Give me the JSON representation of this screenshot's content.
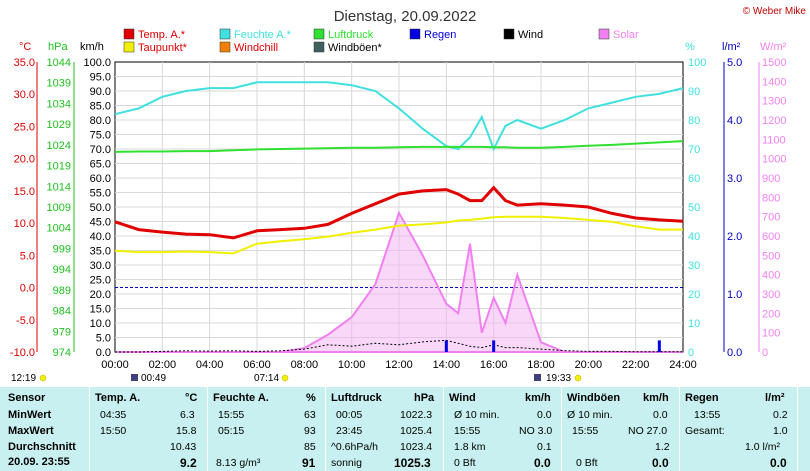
{
  "title": "Dienstag, 20.09.2022",
  "copyright": "© Weber Mike",
  "legend": [
    {
      "label": "Temp. A.*",
      "color": "#e00000"
    },
    {
      "label": "Feuchte A.*",
      "color": "#40e0e0"
    },
    {
      "label": "Luftdruck",
      "color": "#30e030"
    },
    {
      "label": "Regen",
      "color": "#0000e0"
    },
    {
      "label": "Wind",
      "color": "#000000"
    },
    {
      "label": "Solar",
      "color": "#f080f0"
    },
    {
      "label": "Taupunkt*",
      "color": "#f0f000"
    },
    {
      "label": "Windchill",
      "color": "#f08000"
    },
    {
      "label": "Windböen*",
      "color": "#406060"
    }
  ],
  "units": {
    "temp": "°C",
    "press": "hPa",
    "wind": "km/h",
    "hum": "%",
    "rain": "l/m²",
    "solar": "W/m²"
  },
  "axes": {
    "temp": [
      "35.0",
      "30.0",
      "25.0",
      "20.0",
      "15.0",
      "10.0",
      "5.0",
      "0.0",
      "-5.0",
      "-10.0"
    ],
    "press": [
      "1044",
      "1039",
      "1034",
      "1029",
      "1024",
      "1019",
      "1014",
      "1009",
      "1004",
      "999",
      "994",
      "989",
      "984",
      "979",
      "974"
    ],
    "wind": [
      "100.0",
      "95.0",
      "90.0",
      "85.0",
      "80.0",
      "75.0",
      "70.0",
      "65.0",
      "60.0",
      "55.0",
      "50.0",
      "45.0",
      "40.0",
      "35.0",
      "30.0",
      "25.0",
      "20.0",
      "15.0",
      "10.0",
      "5.0",
      "0.0"
    ],
    "hum": [
      "100",
      "90",
      "80",
      "70",
      "60",
      "50",
      "40",
      "30",
      "20",
      "10",
      "0"
    ],
    "rain": [
      "5.0",
      "4.0",
      "3.0",
      "2.0",
      "1.0",
      "0.0"
    ],
    "solar": [
      "1500",
      "1400",
      "1300",
      "1200",
      "1100",
      "1000",
      "900",
      "800",
      "700",
      "600",
      "500",
      "400",
      "300",
      "200",
      "100",
      "0"
    ],
    "time": [
      "00:00",
      "02:00",
      "04:00",
      "06:00",
      "08:00",
      "10:00",
      "12:00",
      "14:00",
      "16:00",
      "18:00",
      "20:00",
      "22:00",
      "24:00"
    ]
  },
  "sun": {
    "sunrise_moon": "12:19",
    "moonrise": "00:49",
    "sunrise": "07:14",
    "sunset": "19:33"
  },
  "chart_data": {
    "type": "line",
    "x_hours": [
      0,
      1,
      2,
      3,
      4,
      5,
      6,
      7,
      8,
      9,
      10,
      11,
      12,
      13,
      14,
      14.5,
      15,
      15.5,
      16,
      16.5,
      17,
      18,
      19,
      20,
      21,
      22,
      23,
      24
    ],
    "series": [
      {
        "name": "Temp. A.*",
        "unit": "°C",
        "values": [
          10.2,
          9.0,
          8.6,
          8.3,
          8.2,
          7.7,
          8.8,
          9.0,
          9.2,
          9.8,
          11.5,
          13.0,
          14.5,
          15.0,
          15.2,
          14.5,
          13.5,
          13.5,
          15.5,
          13.5,
          12.8,
          13.0,
          12.8,
          12.5,
          11.5,
          10.8,
          10.5,
          10.3
        ]
      },
      {
        "name": "Taupunkt*",
        "unit": "°C",
        "values": [
          5.7,
          5.5,
          5.5,
          5.6,
          5.5,
          5.3,
          6.8,
          7.2,
          7.5,
          7.9,
          8.5,
          9.0,
          9.6,
          9.8,
          10.1,
          10.4,
          10.5,
          10.7,
          10.9,
          11.0,
          11.0,
          11.0,
          10.8,
          10.5,
          10.2,
          9.5,
          9.0,
          9.0
        ]
      },
      {
        "name": "Feuchte A.*",
        "unit": "%",
        "values": [
          82,
          84,
          88,
          90,
          91,
          91,
          93,
          93,
          93,
          93,
          92,
          90,
          84,
          77,
          71,
          70,
          74,
          81,
          70,
          78,
          80,
          77,
          80,
          84,
          86,
          88,
          89,
          91
        ]
      },
      {
        "name": "Luftdruck",
        "unit": "hPa",
        "values": [
          1022.3,
          1022.4,
          1022.4,
          1022.5,
          1022.5,
          1022.7,
          1022.9,
          1023.0,
          1023.1,
          1023.2,
          1023.3,
          1023.3,
          1023.4,
          1023.5,
          1023.5,
          1023.5,
          1023.5,
          1023.5,
          1023.4,
          1023.4,
          1023.3,
          1023.3,
          1023.5,
          1023.8,
          1024.0,
          1024.3,
          1024.6,
          1024.9
        ]
      },
      {
        "name": "Solar",
        "unit": "W/m²",
        "values": [
          0,
          0,
          0,
          0,
          0,
          0,
          0,
          0,
          20,
          90,
          180,
          350,
          720,
          500,
          250,
          200,
          560,
          100,
          280,
          150,
          400,
          50,
          0,
          0,
          0,
          0,
          0,
          0
        ]
      },
      {
        "name": "Wind",
        "unit": "km/h",
        "values": [
          0,
          0,
          0.2,
          0.4,
          0.3,
          0.4,
          0.2,
          0.4,
          1.0,
          2.5,
          2.0,
          3.0,
          2.5,
          3.5,
          4.0,
          3.0,
          2.0,
          1.5,
          2.5,
          1.5,
          1.5,
          1.0,
          0.5,
          0.2,
          0.2,
          0.1,
          0.1,
          0.1
        ]
      },
      {
        "name": "Regen",
        "unit": "l/m²",
        "values": [
          0,
          0,
          0,
          0,
          0,
          0,
          0,
          0,
          0,
          0,
          0,
          0,
          0,
          0,
          0.2,
          0,
          0,
          0,
          0.2,
          0,
          0,
          0,
          0,
          0,
          0,
          0,
          0.2,
          0
        ]
      }
    ],
    "ylim_temp": [
      -10,
      35
    ],
    "ylim_hum": [
      0,
      100
    ],
    "ylim_press": [
      974,
      1044
    ],
    "ylim_solar": [
      0,
      1500
    ],
    "ylim_wind": [
      0,
      100
    ],
    "ylim_rain": [
      0,
      5
    ],
    "grid": true
  },
  "table": {
    "cols": [
      {
        "head": [
          "Sensor"
        ],
        "rows": [
          "MinWert",
          "MaxWert",
          "Durchschnitt",
          "20.09.  23:55"
        ]
      },
      {
        "head": [
          "Temp. A.",
          "°C"
        ],
        "rows": [
          [
            "04:35",
            "6.3"
          ],
          [
            "15:50",
            "15.8"
          ],
          [
            "",
            "10.43"
          ],
          [
            "",
            "9.2"
          ]
        ]
      },
      {
        "head": [
          "Feuchte A.",
          "%"
        ],
        "rows": [
          [
            "15:55",
            "63"
          ],
          [
            "05:15",
            "93"
          ],
          [
            "",
            "85"
          ],
          [
            "8.13 g/m³",
            "91"
          ]
        ]
      },
      {
        "head": [
          "Luftdruck",
          "hPa"
        ],
        "rows": [
          [
            "00:05",
            "1022.3"
          ],
          [
            "23:45",
            "1025.4"
          ],
          [
            "^0.6hPa/h",
            "1023.4"
          ],
          [
            "sonnig",
            "1025.3"
          ]
        ]
      },
      {
        "head": [
          "Wind",
          "km/h"
        ],
        "rows": [
          [
            "Ø 10 min.",
            "0.0"
          ],
          [
            "15:55",
            "NO 3.0"
          ],
          [
            "1.8 km",
            "0.1"
          ],
          [
            "0 Bft",
            "0.0"
          ]
        ]
      },
      {
        "head": [
          "Windböen",
          "km/h"
        ],
        "rows": [
          [
            "Ø 10 min.",
            "0.0"
          ],
          [
            "15:55",
            "NO 27.0"
          ],
          [
            "",
            "1.2"
          ],
          [
            "0 Bft",
            "0.0"
          ]
        ]
      },
      {
        "head": [
          "Regen",
          "l/m²"
        ],
        "rows": [
          [
            "13:55",
            "0.2"
          ],
          [
            "Gesamt:",
            "1.0"
          ],
          [
            "",
            "1.0 l/m²"
          ],
          [
            "",
            "0.0"
          ]
        ]
      }
    ]
  }
}
